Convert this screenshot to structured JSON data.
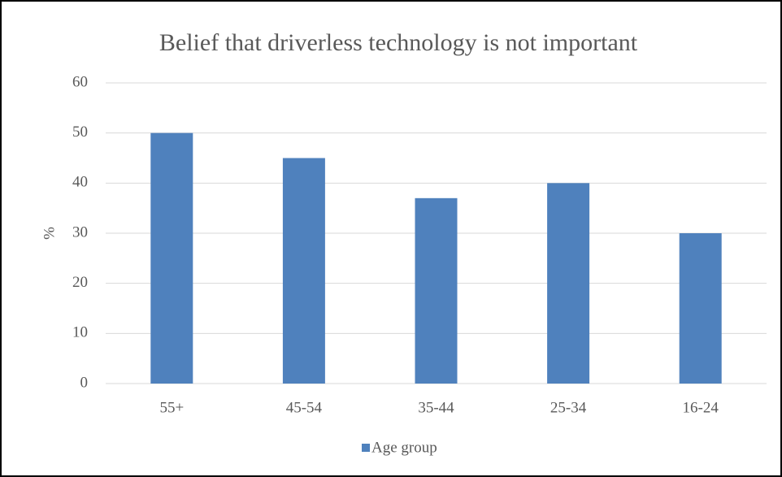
{
  "chart_data": {
    "type": "bar",
    "title": "Belief that driverless technology is not important",
    "y_label": "%",
    "categories": [
      "55+",
      "45-54",
      "35-44",
      "25-34",
      "16-24"
    ],
    "series": [
      {
        "name": "Age group",
        "color": "#4f81bd",
        "values": [
          50,
          45,
          37,
          40,
          30
        ]
      }
    ],
    "ylim": [
      0,
      60
    ],
    "yticks": [
      0,
      10,
      20,
      30,
      40,
      50,
      60
    ],
    "grid": true,
    "legend": "bottom"
  }
}
